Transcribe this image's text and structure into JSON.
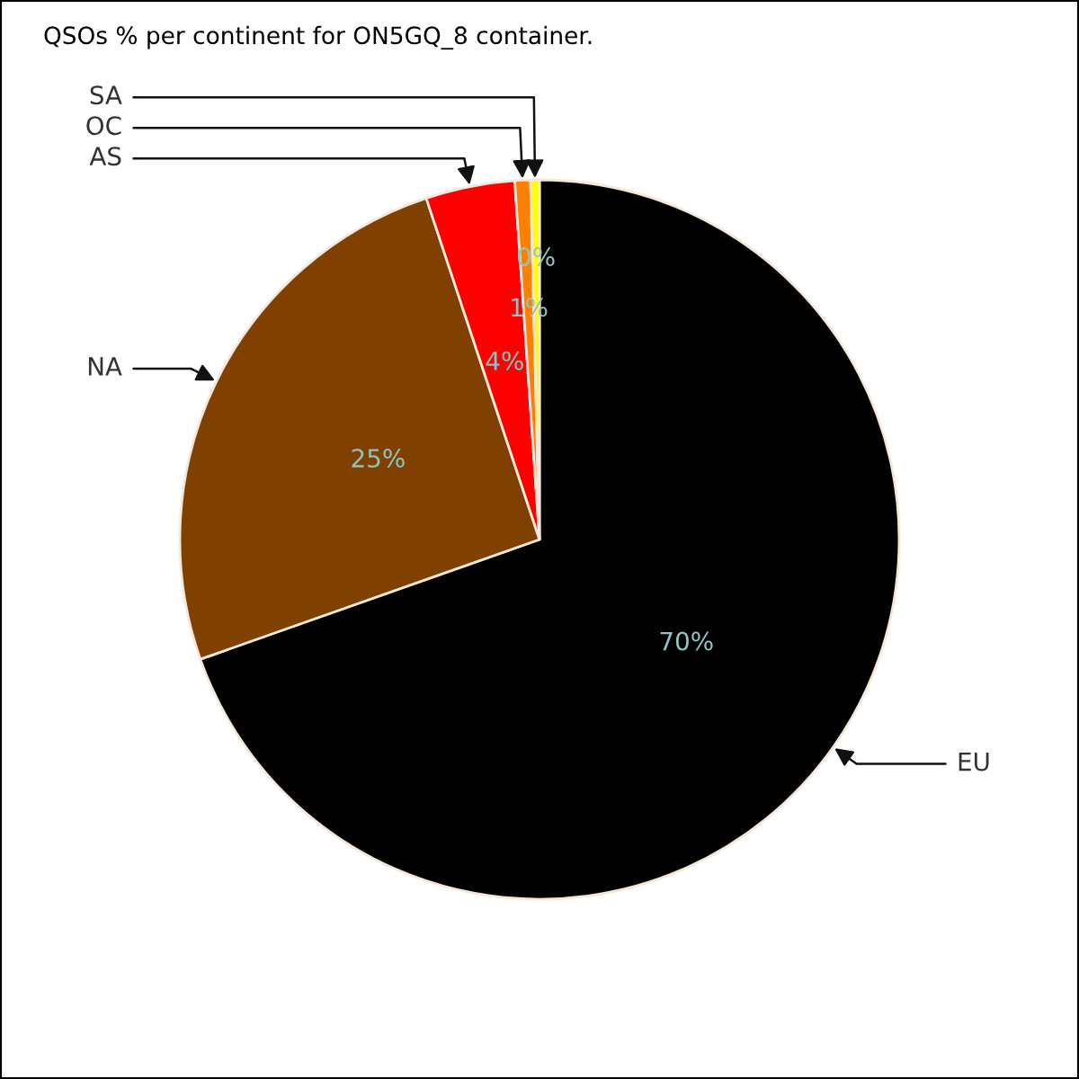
{
  "chart_data": {
    "type": "pie",
    "title": "QSOs % per continent for ON5GQ_8 container.",
    "categories": [
      "EU",
      "NA",
      "AS",
      "OC",
      "SA"
    ],
    "values": [
      69.6,
      25.3,
      4.0,
      0.7,
      0.4
    ],
    "value_labels": [
      "70%",
      "25%",
      "4%",
      "1%",
      "0%"
    ],
    "colors": [
      "#000000",
      "#804000",
      "#ff0000",
      "#ff8000",
      "#ffff00"
    ]
  }
}
